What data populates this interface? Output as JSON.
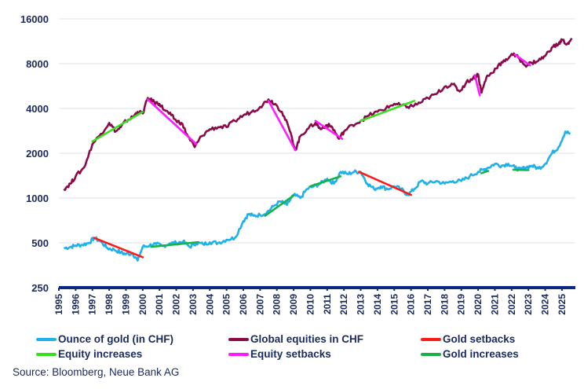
{
  "chart_data": {
    "type": "line",
    "title": "",
    "xlabel": "",
    "ylabel": "",
    "yscale": "log",
    "ylim": [
      250,
      16000
    ],
    "yticks": [
      250,
      500,
      1000,
      2000,
      4000,
      8000,
      16000
    ],
    "ytick_labels": [
      "250",
      "500",
      "1000",
      "2000",
      "4000",
      "8000",
      "16000"
    ],
    "xlim": [
      1995,
      2025.8
    ],
    "xticks": [
      1995,
      1996,
      1997,
      1998,
      1999,
      2000,
      2001,
      2002,
      2003,
      2004,
      2005,
      2006,
      2007,
      2008,
      2009,
      2010,
      2011,
      2012,
      2013,
      2014,
      2015,
      2016,
      2017,
      2018,
      2019,
      2020,
      2021,
      2022,
      2023,
      2024,
      2025
    ],
    "xtick_labels": [
      "1995",
      "1996",
      "1997",
      "1998",
      "1999",
      "2000",
      "2001",
      "2002",
      "2003",
      "2004",
      "2005",
      "2006",
      "2007",
      "2008",
      "2009",
      "2010",
      "2011",
      "2012",
      "2013",
      "2014",
      "2015",
      "2016",
      "2017",
      "2018",
      "2019",
      "2020",
      "2021",
      "2022",
      "2023",
      "2024",
      "2025"
    ],
    "grid": true,
    "legend_position": "bottom",
    "series": [
      {
        "name": "Ounce of gold (in CHF)",
        "color": "#1fb1e8",
        "x": [
          1995.3,
          1995.7,
          1996.0,
          1996.4,
          1996.8,
          1997.1,
          1997.5,
          1997.9,
          1998.3,
          1998.7,
          1999.0,
          1999.4,
          1999.7,
          2000.0,
          2000.4,
          2000.8,
          2001.2,
          2001.6,
          2002.0,
          2002.4,
          2002.8,
          2003.2,
          2003.6,
          2004.0,
          2004.5,
          2005.0,
          2005.5,
          2006.0,
          2006.3,
          2006.6,
          2007.0,
          2007.4,
          2007.8,
          2008.2,
          2008.6,
          2009.0,
          2009.4,
          2009.8,
          2010.2,
          2010.6,
          2011.0,
          2011.4,
          2011.8,
          2012.2,
          2012.6,
          2013.0,
          2013.4,
          2013.8,
          2014.2,
          2014.6,
          2015.0,
          2015.4,
          2015.8,
          2016.2,
          2016.6,
          2017.0,
          2017.5,
          2018.0,
          2018.5,
          2019.0,
          2019.5,
          2020.0,
          2020.3,
          2020.6,
          2021.0,
          2021.4,
          2021.8,
          2022.2,
          2022.5,
          2022.8,
          2023.2,
          2023.6,
          2024.0,
          2024.4,
          2024.8,
          2025.2,
          2025.5
        ],
        "values": [
          460,
          470,
          480,
          485,
          500,
          540,
          510,
          460,
          450,
          430,
          420,
          425,
          380,
          470,
          480,
          490,
          475,
          495,
          500,
          510,
          470,
          500,
          490,
          505,
          500,
          525,
          540,
          700,
          780,
          760,
          770,
          800,
          880,
          950,
          900,
          1050,
          1000,
          1150,
          1200,
          1250,
          1350,
          1250,
          1500,
          1450,
          1500,
          1500,
          1250,
          1150,
          1200,
          1150,
          1200,
          1150,
          1050,
          1150,
          1300,
          1250,
          1300,
          1250,
          1300,
          1300,
          1400,
          1500,
          1550,
          1600,
          1700,
          1650,
          1700,
          1600,
          1550,
          1600,
          1650,
          1580,
          1700,
          2000,
          2200,
          2800,
          2700
        ]
      },
      {
        "name": "Global equities in CHF",
        "color": "#8b0a4a",
        "x": [
          1995.3,
          1995.7,
          1996.0,
          1996.5,
          1997.0,
          1997.5,
          1998.0,
          1998.4,
          1998.7,
          1999.0,
          1999.4,
          1999.7,
          2000.0,
          2000.3,
          2000.7,
          2001.0,
          2001.3,
          2001.7,
          2002.0,
          2002.3,
          2002.7,
          2003.1,
          2003.5,
          2004.0,
          2004.5,
          2005.0,
          2005.5,
          2006.0,
          2006.5,
          2007.0,
          2007.5,
          2007.9,
          2008.3,
          2008.7,
          2009.1,
          2009.4,
          2009.8,
          2010.3,
          2010.6,
          2011.0,
          2011.3,
          2011.7,
          2012.0,
          2012.5,
          2013.0,
          2013.5,
          2014.0,
          2014.5,
          2015.0,
          2015.4,
          2015.8,
          2016.2,
          2016.6,
          2017.0,
          2017.5,
          2018.0,
          2018.5,
          2018.9,
          2019.3,
          2019.7,
          2020.0,
          2020.2,
          2020.5,
          2020.8,
          2021.2,
          2021.6,
          2022.0,
          2022.4,
          2022.8,
          2023.2,
          2023.6,
          2024.0,
          2024.4,
          2024.8,
          2025.0,
          2025.3,
          2025.6
        ],
        "values": [
          1150,
          1250,
          1400,
          1600,
          2300,
          2700,
          3200,
          2800,
          3000,
          3300,
          3500,
          3800,
          3700,
          4700,
          4400,
          4300,
          3900,
          3600,
          3300,
          3200,
          2600,
          2200,
          2600,
          2900,
          3000,
          3000,
          3300,
          3600,
          3800,
          4100,
          4600,
          4300,
          3800,
          3000,
          2100,
          2600,
          2900,
          3200,
          2900,
          3100,
          3000,
          2500,
          2800,
          3100,
          3300,
          3600,
          3800,
          4000,
          4300,
          4200,
          4100,
          4200,
          4400,
          4700,
          5000,
          5600,
          5800,
          5200,
          6000,
          6400,
          6800,
          5100,
          6500,
          6900,
          7800,
          8300,
          9300,
          8800,
          7800,
          8100,
          8400,
          9000,
          10300,
          10800,
          11600,
          10800,
          11600
        ]
      }
    ],
    "segments": [
      {
        "name": "Gold setbacks",
        "color": "#ff1a1a",
        "lines": [
          [
            1997.1,
            540,
            2000.0,
            400
          ],
          [
            2012.9,
            1500,
            2016.0,
            1050
          ]
        ]
      },
      {
        "name": "Gold increases",
        "color": "#17b14a",
        "lines": [
          [
            2000.5,
            470,
            2003.3,
            505
          ],
          [
            2007.3,
            760,
            2009.0,
            1040
          ],
          [
            2010.0,
            1200,
            2011.8,
            1400
          ],
          [
            2020.2,
            1470,
            2020.6,
            1520
          ],
          [
            2022.1,
            1550,
            2023.0,
            1540
          ]
        ]
      },
      {
        "name": "Equity increases",
        "color": "#35e020",
        "lines": [
          [
            1997.0,
            2400,
            2000.0,
            3800
          ],
          [
            2013.0,
            3300,
            2016.2,
            4500
          ]
        ]
      },
      {
        "name": "Equity setbacks",
        "color": "#ff1aff",
        "lines": [
          [
            2000.3,
            4600,
            2003.2,
            2300
          ],
          [
            2007.5,
            4500,
            2009.1,
            2100
          ],
          [
            2010.3,
            3300,
            2011.9,
            2500
          ],
          [
            2019.8,
            6700,
            2020.1,
            4900
          ],
          [
            2022.2,
            9200,
            2023.1,
            7800
          ]
        ]
      }
    ]
  },
  "legend": {
    "items": [
      {
        "label": "Ounce of gold (in CHF)",
        "color": "#1fb1e8"
      },
      {
        "label": "Global equities in CHF",
        "color": "#8b0a4a"
      },
      {
        "label": "Gold setbacks",
        "color": "#ff1a1a"
      },
      {
        "label": "Equity increases",
        "color": "#35e020"
      },
      {
        "label": "Equity setbacks",
        "color": "#ff1aff"
      },
      {
        "label": "Gold increases",
        "color": "#17b14a"
      }
    ]
  },
  "source": "Source: Bloomberg, Neue Bank AG"
}
